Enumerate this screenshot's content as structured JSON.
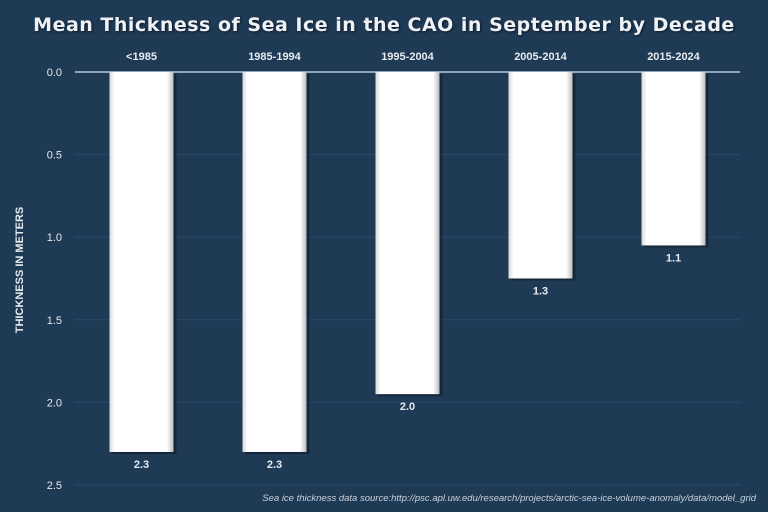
{
  "chart_data": {
    "type": "bar",
    "title": "Mean Thickness of Sea Ice in the CAO in September by Decade",
    "ylabel": "THICKNESS IN METERS",
    "xlabel": "",
    "categories": [
      "<1985",
      "1985-1994",
      "1995-2004",
      "2005-2014",
      "2015-2024"
    ],
    "values": [
      2.3,
      2.3,
      1.95,
      1.25,
      1.05
    ],
    "data_labels": [
      "2.3",
      "2.3",
      "2.0",
      "1.3",
      "1.1"
    ],
    "ylim": [
      0,
      2.5
    ],
    "y_inverted": true,
    "x_axis_position": "top",
    "yticks": [
      "0.0",
      "0.5",
      "1.0",
      "1.5",
      "2.0",
      "2.5"
    ],
    "grid": true,
    "source_note": "Sea ice thickness data source:http://psc.apl.uw.edu/research/projects/arctic-sea-ice-volume-anomaly/data/model_grid",
    "colors": {
      "background": "#1f3a55",
      "bar": "#ffffff",
      "text": "#e6ebf0",
      "grid": "#2c4a68"
    }
  }
}
